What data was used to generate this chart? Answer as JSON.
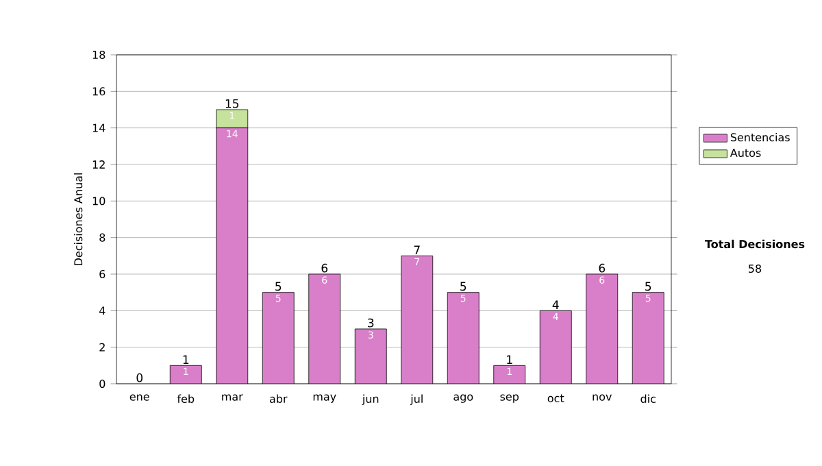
{
  "chart_data": {
    "type": "bar",
    "stacked": true,
    "ylabel": "Decisiones Anual",
    "categories": [
      "ene",
      "feb",
      "mar",
      "abr",
      "may",
      "jun",
      "jul",
      "ago",
      "sep",
      "oct",
      "nov",
      "dic"
    ],
    "series": [
      {
        "name": "Sentencias",
        "color": "#d97fc9",
        "values": [
          0,
          1,
          14,
          5,
          6,
          3,
          7,
          5,
          1,
          4,
          6,
          5
        ],
        "value_labels": [
          null,
          "1",
          "14",
          "5",
          "6",
          "3",
          "7",
          "5",
          "1",
          "4",
          "6",
          "5"
        ]
      },
      {
        "name": "Autos",
        "color": "#c6e29c",
        "values": [
          0,
          0,
          1,
          0,
          0,
          0,
          0,
          0,
          0,
          0,
          0,
          0
        ],
        "value_labels": [
          null,
          null,
          "1",
          null,
          null,
          null,
          null,
          null,
          null,
          null,
          null,
          null
        ]
      }
    ],
    "totals": [
      "0",
      "1",
      "15",
      "5",
      "6",
      "3",
      "7",
      "5",
      "1",
      "4",
      "6",
      "5"
    ],
    "ylim": [
      0,
      18
    ],
    "yticks": [
      0,
      2,
      4,
      6,
      8,
      10,
      12,
      14,
      16,
      18
    ],
    "grid": "y",
    "legend": "right",
    "annotations": [
      "Total Decisiones",
      "58"
    ]
  }
}
